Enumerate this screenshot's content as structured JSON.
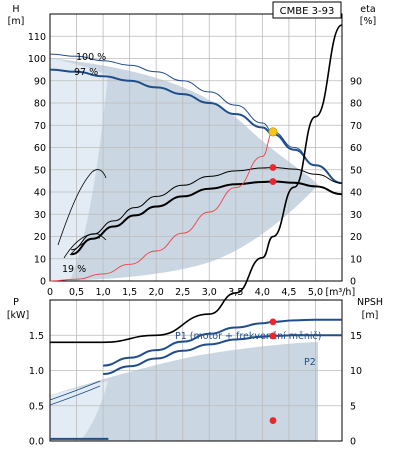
{
  "title": "CMBE 3-93",
  "chart_data": [
    {
      "type": "line",
      "panel": "top",
      "xlabel_unit": "Q [m³/h]",
      "x_ticks": [
        "0",
        "0,5",
        "1,0",
        "1,5",
        "2,0",
        "2,5",
        "3,0",
        "3,5",
        "4,0",
        "4,5",
        "5,0"
      ],
      "xlim": [
        0,
        5.5
      ],
      "left_axis": {
        "name": "H",
        "unit": "[m]",
        "ylim": [
          0,
          120
        ],
        "ticks": [
          "0",
          "10",
          "20",
          "30",
          "40",
          "50",
          "60",
          "70",
          "80",
          "90",
          "100",
          "110"
        ]
      },
      "right_axis": {
        "name": "eta",
        "unit": "[%]",
        "ylim": [
          0,
          120
        ],
        "ticks": [
          "0",
          "10",
          "20",
          "30",
          "40",
          "50",
          "60",
          "70",
          "80",
          "90"
        ]
      },
      "annotations": [
        "100 %",
        "97 %",
        "19 %"
      ],
      "series": [
        {
          "style": "head_100",
          "x": [
            0,
            0.5,
            1.0,
            1.5,
            2.0,
            2.5,
            3.0,
            3.5,
            4.0,
            4.2,
            4.6,
            5.0,
            5.5
          ],
          "y": [
            102,
            101,
            99,
            97,
            94,
            90,
            85,
            79,
            71,
            67,
            60,
            52,
            44
          ]
        },
        {
          "style": "head_97",
          "x": [
            0,
            0.5,
            1.0,
            1.5,
            2.0,
            2.5,
            3.0,
            3.5,
            4.0,
            4.2,
            4.6,
            5.0,
            5.5
          ],
          "y": [
            95,
            94,
            92,
            90,
            87,
            84,
            80,
            75,
            69,
            66,
            59,
            52,
            44
          ]
        },
        {
          "style": "eta_thin",
          "x": [
            0.4,
            0.8,
            1.2,
            1.6,
            2.0,
            2.5,
            3.0,
            3.5,
            4.0,
            4.2,
            4.6,
            5.0,
            5.5
          ],
          "y": [
            14,
            21,
            27,
            33,
            38,
            43,
            47,
            49.5,
            50.8,
            51,
            50.3,
            48,
            44
          ]
        },
        {
          "style": "eta_thick",
          "x": [
            0.4,
            0.8,
            1.2,
            1.6,
            2.0,
            2.5,
            3.0,
            3.5,
            4.0,
            4.2,
            4.6,
            5.0,
            5.5
          ],
          "y": [
            12,
            19,
            24.5,
            29.5,
            33.5,
            38,
            41.5,
            43.5,
            44.5,
            44.7,
            44.2,
            42.5,
            39
          ]
        },
        {
          "style": "system_curve",
          "x": [
            0,
            0.5,
            1.0,
            1.5,
            2.0,
            2.5,
            3.0,
            3.5,
            4.0,
            4.2
          ],
          "y": [
            0,
            0.8,
            3.2,
            7.5,
            13.5,
            21.5,
            31,
            42,
            56,
            67
          ]
        }
      ],
      "duty_points": [
        {
          "x": 4.2,
          "y": 67,
          "color": "#f5c518"
        },
        {
          "x": 4.2,
          "y": 51,
          "color": "#e8282a"
        },
        {
          "x": 4.2,
          "y": 44.7,
          "color": "#e8282a"
        }
      ]
    },
    {
      "type": "line",
      "panel": "bottom",
      "xlim": [
        0,
        5.5
      ],
      "left_axis": {
        "name": "P",
        "unit": "[kW]",
        "ylim": [
          0,
          2.0
        ],
        "ticks": [
          "0.0",
          "0.5",
          "1.0",
          "1.5"
        ]
      },
      "right_axis": {
        "name": "NPSH",
        "unit": "[m]",
        "ylim": [
          0,
          20
        ],
        "ticks": [
          "0",
          "5",
          "10",
          "15"
        ]
      },
      "series": [
        {
          "name": "P1 (motor + frekvenční měnič)",
          "x": [
            1.0,
            1.5,
            2.0,
            2.5,
            3.0,
            3.5,
            4.0,
            4.2,
            4.6,
            5.0,
            5.5
          ],
          "y": [
            1.07,
            1.18,
            1.29,
            1.41,
            1.52,
            1.61,
            1.67,
            1.69,
            1.71,
            1.72,
            1.72
          ]
        },
        {
          "name": "P2",
          "x": [
            1.0,
            1.5,
            2.0,
            2.5,
            3.0,
            3.5,
            4.0,
            4.2,
            4.6,
            5.0,
            5.5
          ],
          "y": [
            0.95,
            1.06,
            1.17,
            1.28,
            1.37,
            1.44,
            1.48,
            1.49,
            1.5,
            1.5,
            1.5
          ]
        },
        {
          "style": "npsh",
          "x": [
            0,
            1.0,
            2.0,
            3.0,
            3.5,
            4.0,
            4.2,
            4.6,
            5.0,
            5.5
          ],
          "y": [
            1.4,
            1.4,
            1.5,
            1.8,
            2.1,
            2.6,
            2.9,
            3.6,
            4.6,
            5.9
          ]
        }
      ],
      "duty_points": [
        {
          "x": 4.2,
          "y": 1.69,
          "color": "#e8282a"
        },
        {
          "x": 4.2,
          "y": 1.49,
          "color": "#e8282a"
        },
        {
          "x": 4.2,
          "y": 0.29,
          "color": "#e8282a"
        }
      ]
    }
  ]
}
